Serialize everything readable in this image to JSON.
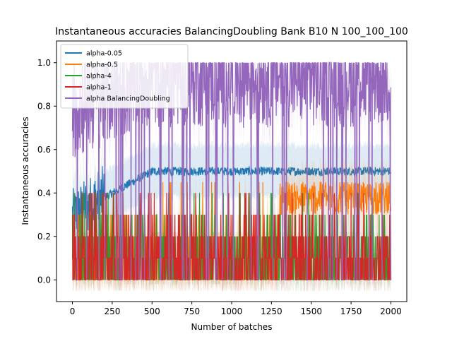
{
  "chart_data": {
    "type": "line",
    "title": "Instantaneous accuracies BalancingDoubling Bank B10 N 100_100_100",
    "xlabel": "Number of batches",
    "ylabel": "Instantaneous accuracies",
    "xlim": [
      -100,
      2100
    ],
    "ylim": [
      -0.1,
      1.1
    ],
    "xticks": [
      0,
      250,
      500,
      750,
      1000,
      1250,
      1500,
      1750,
      2000
    ],
    "yticks": [
      0.0,
      0.2,
      0.4,
      0.6,
      0.8,
      1.0
    ],
    "xtick_labels": [
      "0",
      "250",
      "500",
      "750",
      "1000",
      "1250",
      "1500",
      "1750",
      "2000"
    ],
    "ytick_labels": [
      "0.0",
      "0.2",
      "0.4",
      "0.6",
      "0.8",
      "1.0"
    ],
    "legend_position": "top-left",
    "grid": false,
    "n_batches": 2000,
    "series": [
      {
        "name": "alpha-0.05",
        "color": "#1f77b4",
        "mean_start": 0.3,
        "mean_end": 0.5,
        "min": 0.0,
        "max": 0.55
      },
      {
        "name": "alpha-0.5",
        "color": "#ff7f0e",
        "mean_start": 0.0,
        "mean_end": 0.45,
        "min": 0.0,
        "max": 0.45
      },
      {
        "name": "alpha-4",
        "color": "#2ca02c",
        "mean_start": 0.0,
        "mean_end": 0.1,
        "min": 0.0,
        "max": 0.4
      },
      {
        "name": "alpha-1",
        "color": "#d62728",
        "mean_start": 0.1,
        "mean_end": 0.1,
        "min": 0.0,
        "max": 0.4
      },
      {
        "name": "alpha BalancingDoubling",
        "color": "#9467bd",
        "mean_start": 0.7,
        "mean_end": 0.85,
        "min": 0.0,
        "max": 1.0
      }
    ]
  }
}
